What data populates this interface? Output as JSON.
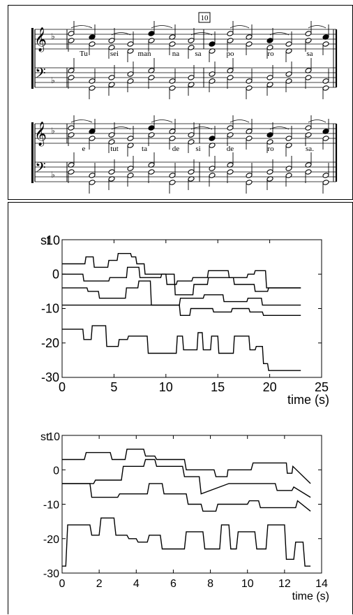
{
  "score": {
    "measure_number": "10",
    "lyrics_line1": [
      "Tu",
      "sei",
      "man",
      "na",
      "sa",
      "po",
      "ro",
      "sa"
    ],
    "lyrics_line2": [
      "e",
      "tut",
      "ta",
      "de",
      "si",
      "de",
      "ro",
      "sa."
    ]
  },
  "chart_data": [
    {
      "type": "line",
      "ylabel": "st",
      "xlabel": "time (s)",
      "xlim": [
        0,
        25
      ],
      "ylim": [
        -30,
        10
      ],
      "xticks": [
        0,
        5,
        10,
        15,
        20,
        25
      ],
      "yticks": [
        -30,
        -20,
        -10,
        0,
        10
      ],
      "series": [
        {
          "x": [
            0,
            2.2,
            2.3,
            3.0,
            3.1,
            4.4,
            4.5,
            5.3,
            5.4,
            6.6,
            6.7,
            7.1,
            7.2,
            7.9,
            8.0,
            10.0,
            10.1,
            11.0,
            11.1,
            12.5,
            12.6,
            14.0,
            14.1,
            16.0,
            16.1,
            17.8,
            17.9,
            18.5,
            18.6,
            19.6,
            19.7,
            23.0
          ],
          "y": [
            3,
            3,
            5,
            5,
            2,
            2,
            4,
            4,
            6,
            6,
            5,
            5,
            3,
            3,
            0,
            0,
            -3,
            -3,
            -2,
            -2,
            -1,
            -1,
            1,
            1,
            -1,
            -1,
            0,
            0,
            1,
            1,
            -4,
            -4
          ]
        },
        {
          "x": [
            0,
            2.0,
            2.1,
            4.5,
            4.6,
            6.2,
            6.3,
            7.4,
            7.5,
            9.5,
            9.6,
            10.8,
            10.9,
            12.6,
            12.7,
            14.0,
            14.1,
            16.5,
            16.6,
            18.5,
            18.6,
            19.8,
            19.9,
            23.0
          ],
          "y": [
            0,
            0,
            -2,
            -2,
            -1,
            -1,
            2,
            2,
            -1,
            -1,
            0,
            0,
            -6,
            -6,
            -3,
            -3,
            -1,
            -1,
            -3,
            -3,
            -5,
            -5,
            -4,
            -4
          ]
        },
        {
          "x": [
            0,
            2.4,
            2.5,
            3.5,
            3.6,
            6.1,
            6.2,
            7.3,
            7.4,
            8.5,
            8.6,
            11.3,
            11.4,
            13.6,
            13.7,
            15.5,
            15.6,
            17.8,
            17.9,
            19.2,
            19.3,
            23.0
          ],
          "y": [
            -4,
            -4,
            -5,
            -5,
            -7,
            -7,
            -4,
            -4,
            -2,
            -2,
            -9,
            -9,
            -7,
            -7,
            -6,
            -6,
            -8,
            -8,
            -7,
            -7,
            -9,
            -9
          ]
        },
        {
          "x": [
            0,
            11.3,
            11.4,
            12.3,
            12.4,
            14.5,
            14.6,
            16.3,
            16.4,
            18.0,
            18.1,
            19.3,
            19.4,
            23.0
          ],
          "y": [
            -9,
            -9,
            -12,
            -12,
            -10,
            -10,
            -11,
            -11,
            -10,
            -10,
            -11,
            -11,
            -12,
            -12
          ]
        },
        {
          "x": [
            0,
            2.0,
            2.1,
            2.8,
            2.9,
            4.2,
            4.3,
            5.4,
            5.5,
            6.3,
            6.4,
            8.2,
            8.3,
            8.6,
            8.7,
            11.0,
            11.1,
            11.6,
            11.7,
            13.0,
            13.1,
            13.5,
            13.6,
            14.3,
            14.4,
            15.0,
            15.1,
            16.5,
            16.6,
            18.0,
            18.1,
            18.6,
            18.7,
            19.3,
            19.4,
            19.8,
            19.9,
            23.0
          ],
          "y": [
            -16,
            -16,
            -19,
            -19,
            -15,
            -15,
            -21,
            -21,
            -19,
            -19,
            -18,
            -18,
            -23,
            -23,
            -23,
            -23,
            -18,
            -18,
            -22,
            -22,
            -17,
            -17,
            -22,
            -22,
            -18,
            -18,
            -23,
            -23,
            -18,
            -18,
            -22,
            -22,
            -21,
            -21,
            -26,
            -26,
            -28,
            -28
          ]
        }
      ]
    },
    {
      "type": "line",
      "ylabel": "st",
      "xlabel": "time (s)",
      "xlim": [
        0,
        14
      ],
      "ylim": [
        -30,
        10
      ],
      "xticks": [
        0,
        2,
        4,
        6,
        8,
        10,
        12,
        14
      ],
      "yticks": [
        -30,
        -20,
        -10,
        0,
        10
      ],
      "series": [
        {
          "x": [
            0,
            1.2,
            1.3,
            2.6,
            2.7,
            3.4,
            3.5,
            4.4,
            4.5,
            5.0,
            5.1,
            6.6,
            6.7,
            8.2,
            8.3,
            8.9,
            8.95,
            10.2,
            10.3,
            12.1,
            12.15,
            12.4,
            12.45,
            13.4
          ],
          "y": [
            3,
            3,
            5,
            5,
            3,
            3,
            6,
            6,
            4,
            4,
            3,
            3,
            0,
            0,
            -2,
            -2,
            0,
            0,
            2,
            2,
            -1,
            -1,
            1,
            -4
          ]
        },
        {
          "x": [
            0,
            1.7,
            1.8,
            3.2,
            3.3,
            4.4,
            4.5,
            5.0,
            5.1,
            6.5,
            6.6,
            7.4,
            7.5,
            9.0,
            9.1,
            11.5,
            11.6,
            12.4,
            12.5,
            13.4
          ],
          "y": [
            -4,
            -4,
            -3,
            -3,
            1,
            1,
            3,
            3,
            1,
            1,
            -2,
            -2,
            -7,
            -4,
            -4,
            -4,
            -6,
            -6,
            -5,
            -8
          ]
        },
        {
          "x": [
            0,
            1.5,
            1.6,
            3.0,
            3.1,
            4.6,
            4.7,
            5.4,
            5.5,
            6.7,
            6.8,
            7.5,
            7.6,
            8.3,
            8.4,
            10.0,
            10.1,
            10.6,
            10.7,
            12.6,
            12.7,
            13.4
          ],
          "y": [
            -4,
            -4,
            -8,
            -8,
            -7,
            -7,
            -4,
            -4,
            -7,
            -7,
            -10,
            -10,
            -12,
            -12,
            -10,
            -10,
            -9,
            -9,
            -11,
            -11,
            -9,
            -12
          ]
        },
        {
          "x": [
            0,
            0.2,
            0.3,
            1.5,
            1.6,
            2.0,
            2.1,
            2.8,
            2.9,
            3.5,
            3.6,
            4.0,
            4.1,
            4.6,
            4.7,
            5.3,
            5.4,
            6.6,
            6.7,
            7.6,
            7.7,
            8.5,
            8.6,
            9.0,
            9.1,
            9.4,
            9.5,
            10.4,
            10.5,
            11.0,
            11.1,
            12.0,
            12.1,
            12.5,
            12.6,
            13.0,
            13.1,
            13.4
          ],
          "y": [
            -28,
            -28,
            -16,
            -16,
            -19,
            -19,
            -14,
            -14,
            -19,
            -19,
            -20,
            -20,
            -21,
            -21,
            -19,
            -19,
            -23,
            -23,
            -18,
            -18,
            -23,
            -23,
            -16,
            -16,
            -23,
            -23,
            -18,
            -18,
            -23,
            -23,
            -16,
            -16,
            -26,
            -26,
            -21,
            -21,
            -28,
            -28
          ]
        }
      ]
    }
  ]
}
